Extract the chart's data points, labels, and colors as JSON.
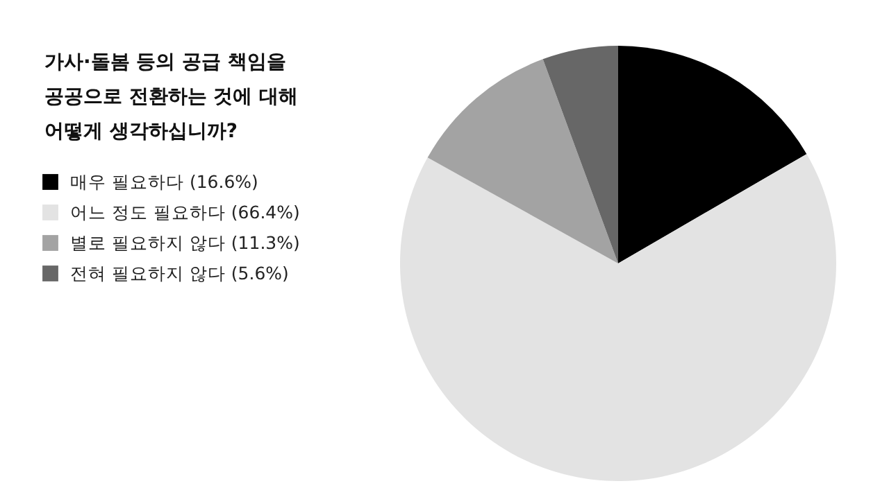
{
  "chart_data": {
    "type": "pie",
    "title": "가사·돌봄 등의 공급 책임을\n공공으로 전환하는 것에 대해\n어떻게 생각하십니까?",
    "categories": [
      "매우 필요하다 (16.6%)",
      "어느 정도 필요하다 (66.4%)",
      "별로 필요하지 않다 (11.3%)",
      "전혀 필요하지 않다 (5.6%)"
    ],
    "values": [
      16.6,
      66.4,
      11.3,
      5.6
    ],
    "colors": [
      "#000000",
      "#e3e3e3",
      "#a3a3a3",
      "#676767"
    ],
    "legend": "left"
  }
}
